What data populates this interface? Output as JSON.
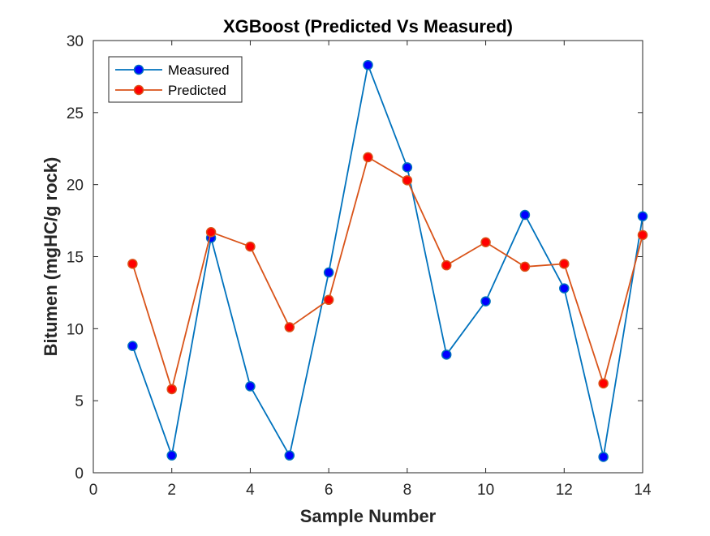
{
  "chart_data": {
    "type": "line",
    "title": "XGBoost (Predicted Vs Measured)",
    "xlabel": "Sample Number",
    "ylabel": "Bitumen (mgHC/g rock)",
    "xlim": [
      0,
      14
    ],
    "ylim": [
      0,
      30
    ],
    "xticks": [
      0,
      2,
      4,
      6,
      8,
      10,
      12,
      14
    ],
    "yticks": [
      0,
      5,
      10,
      15,
      20,
      25,
      30
    ],
    "grid": false,
    "legend_position": "top-left",
    "x": [
      1,
      2,
      3,
      4,
      5,
      6,
      7,
      8,
      9,
      10,
      11,
      12,
      13,
      14
    ],
    "series": [
      {
        "name": "Measured",
        "line_color": "#0072BD",
        "marker_color": "#0000FF",
        "values": [
          8.8,
          1.2,
          16.3,
          6.0,
          1.2,
          13.9,
          28.3,
          21.2,
          8.2,
          11.9,
          17.9,
          12.8,
          1.1,
          17.8
        ]
      },
      {
        "name": "Predicted",
        "line_color": "#D95319",
        "marker_color": "#FF0000",
        "values": [
          14.5,
          5.8,
          16.7,
          15.7,
          10.1,
          12.0,
          21.9,
          20.3,
          14.4,
          16.0,
          14.3,
          14.5,
          6.2,
          16.5
        ]
      }
    ]
  }
}
